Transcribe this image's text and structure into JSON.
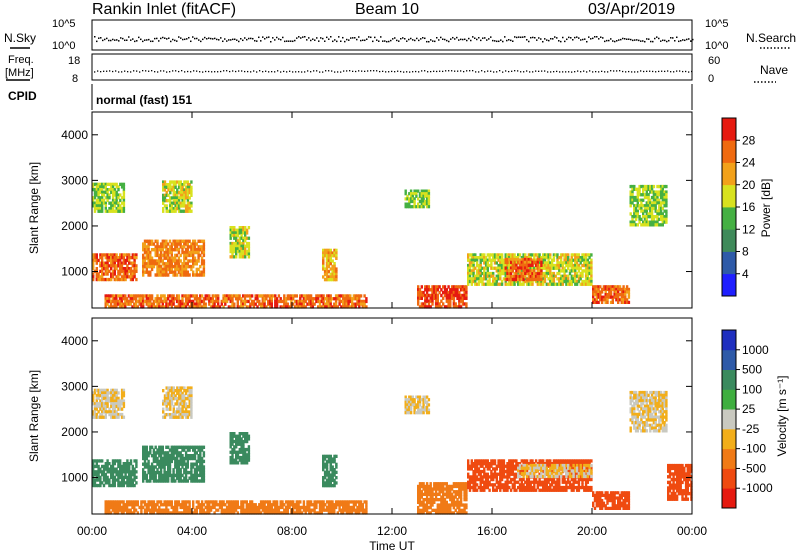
{
  "header": {
    "radar": "Rankin Inlet (fitACF)",
    "beam": "Beam 10",
    "date": "03/Apr/2019"
  },
  "top_panels": {
    "nsky_label": "N.Sky",
    "nsearch_label": "N.Search",
    "freq_label_line1": "Freq.",
    "freq_label_line2": "[MHz]",
    "nave_label": "Nave",
    "cpid_label": "CPID",
    "cpid_value": "normal (fast) 151",
    "noise_ticks": [
      "10^5",
      "10^0"
    ],
    "freq_ticks_left": [
      "18",
      "8"
    ],
    "nave_ticks_right": [
      "60",
      "0"
    ]
  },
  "colors": {
    "power_scale": [
      "#1f1fff",
      "#2e5aa8",
      "#3f8a5a",
      "#45b043",
      "#d8e21f",
      "#f2a11a",
      "#ef6a10",
      "#e61a10"
    ],
    "velocity_scale": [
      "#e61a10",
      "#ef4a10",
      "#f07a16",
      "#f2ae1a",
      "#c9c9c0",
      "#3fae3f",
      "#3a8a5e",
      "#2e5aa8",
      "#1f2fbf"
    ]
  },
  "chart_data": [
    {
      "type": "heatmap",
      "name": "power",
      "xlabel": "",
      "ylabel": "Slant Range [km]",
      "ylim": [
        200,
        4500
      ],
      "yticks": [
        "1000",
        "2000",
        "3000",
        "4000"
      ],
      "colorbar": {
        "label": "Power [dB]",
        "range": [
          0,
          32
        ],
        "ticks": [
          "4",
          "8",
          "12",
          "16",
          "20",
          "24",
          "28"
        ]
      },
      "regions": [
        {
          "t0": 0.0,
          "t1": 1.3,
          "r0": 2300,
          "r1": 2950,
          "level": 16
        },
        {
          "t0": 0.0,
          "t1": 1.8,
          "r0": 800,
          "r1": 1400,
          "level": 26
        },
        {
          "t0": 2.0,
          "t1": 4.5,
          "r0": 900,
          "r1": 1700,
          "level": 24
        },
        {
          "t0": 2.8,
          "t1": 4.0,
          "r0": 2300,
          "r1": 3000,
          "level": 18
        },
        {
          "t0": 5.5,
          "t1": 6.3,
          "r0": 1300,
          "r1": 2000,
          "level": 18
        },
        {
          "t0": 9.2,
          "t1": 9.8,
          "r0": 800,
          "r1": 1500,
          "level": 22
        },
        {
          "t0": 12.5,
          "t1": 13.5,
          "r0": 2400,
          "r1": 2800,
          "level": 16
        },
        {
          "t0": 13.0,
          "t1": 15.0,
          "r0": 200,
          "r1": 700,
          "level": 28
        },
        {
          "t0": 15.0,
          "t1": 20.0,
          "r0": 700,
          "r1": 1400,
          "level": 18
        },
        {
          "t0": 16.5,
          "t1": 18.0,
          "r0": 800,
          "r1": 1300,
          "level": 26
        },
        {
          "t0": 20.0,
          "t1": 21.5,
          "r0": 300,
          "r1": 700,
          "level": 26
        },
        {
          "t0": 21.5,
          "t1": 23.0,
          "r0": 2000,
          "r1": 2900,
          "level": 16
        },
        {
          "t0": 0.5,
          "t1": 11.0,
          "r0": 200,
          "r1": 500,
          "level": 26
        }
      ]
    },
    {
      "type": "heatmap",
      "name": "velocity",
      "xlabel": "Time UT",
      "ylabel": "Slant Range [km]",
      "ylim": [
        200,
        4500
      ],
      "yticks": [
        "1000",
        "2000",
        "3000",
        "4000"
      ],
      "xticks": [
        "00:00",
        "04:00",
        "08:00",
        "12:00",
        "16:00",
        "20:00",
        "00:00"
      ],
      "colorbar": {
        "label": "Velocity [m s⁻¹]",
        "ticks": [
          "-1000",
          "-500",
          "-100",
          "-25",
          "25",
          "100",
          "500",
          "1000"
        ]
      },
      "regions": [
        {
          "t0": 0.0,
          "t1": 1.3,
          "r0": 2300,
          "r1": 2950,
          "level": 0
        },
        {
          "t0": 0.0,
          "t1": 1.8,
          "r0": 800,
          "r1": 1400,
          "level": 300
        },
        {
          "t0": 2.0,
          "t1": 4.5,
          "r0": 900,
          "r1": 1700,
          "level": 300
        },
        {
          "t0": 2.8,
          "t1": 4.0,
          "r0": 2300,
          "r1": 3000,
          "level": 0
        },
        {
          "t0": 5.5,
          "t1": 6.3,
          "r0": 1300,
          "r1": 2000,
          "level": 300
        },
        {
          "t0": 9.2,
          "t1": 9.8,
          "r0": 800,
          "r1": 1500,
          "level": 300
        },
        {
          "t0": 12.5,
          "t1": 13.5,
          "r0": 2400,
          "r1": 2800,
          "level": 0
        },
        {
          "t0": 13.0,
          "t1": 15.0,
          "r0": 200,
          "r1": 900,
          "level": -80
        },
        {
          "t0": 15.0,
          "t1": 20.0,
          "r0": 700,
          "r1": 1400,
          "level": -300
        },
        {
          "t0": 17.0,
          "t1": 20.0,
          "r0": 1000,
          "r1": 1300,
          "level": 0
        },
        {
          "t0": 20.0,
          "t1": 21.5,
          "r0": 300,
          "r1": 700,
          "level": -300
        },
        {
          "t0": 21.5,
          "t1": 23.0,
          "r0": 2000,
          "r1": 2900,
          "level": 0
        },
        {
          "t0": 0.5,
          "t1": 11.0,
          "r0": 200,
          "r1": 500,
          "level": -80
        },
        {
          "t0": 23.0,
          "t1": 24.0,
          "r0": 500,
          "r1": 1300,
          "level": -300
        }
      ]
    }
  ]
}
